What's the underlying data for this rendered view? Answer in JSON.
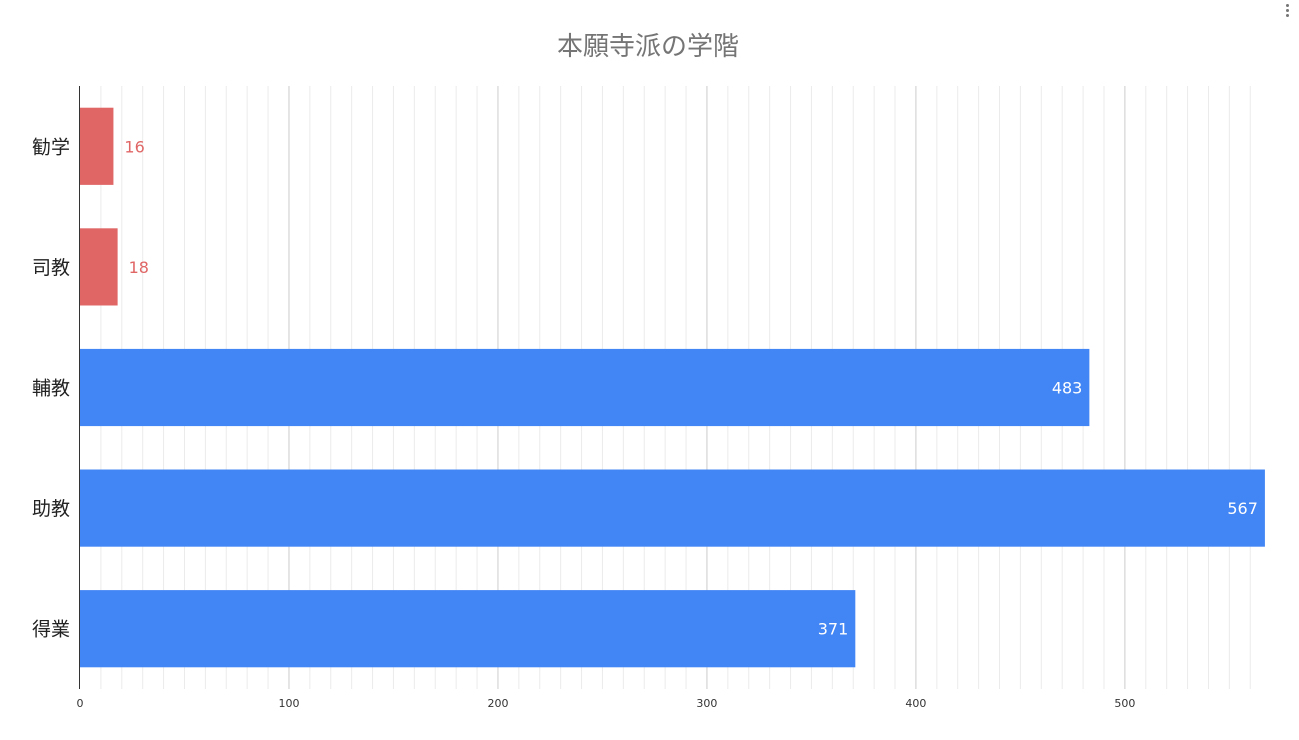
{
  "chart_data": {
    "type": "bar",
    "orientation": "horizontal",
    "title": "本願寺派の学階",
    "categories": [
      "勧学",
      "司教",
      "輔教",
      "助教",
      "得業"
    ],
    "values": [
      16,
      18,
      483,
      567,
      371
    ],
    "data_labels": [
      "16",
      "18",
      "483",
      "567",
      "371"
    ],
    "colors": [
      "#e06666",
      "#e06666",
      "#4285f4",
      "#4285f4",
      "#4285f4"
    ],
    "label_colors": [
      "#e06666",
      "#e06666",
      "#ffffff",
      "#ffffff",
      "#ffffff"
    ],
    "xlim": [
      0,
      568
    ],
    "xticks": [
      0,
      100,
      200,
      300,
      400,
      500
    ],
    "xtick_labels": [
      "0",
      "100",
      "200",
      "300",
      "400",
      "500"
    ],
    "minor_step": 10,
    "xlabel": "",
    "ylabel": "",
    "grid": true,
    "legend": "none"
  },
  "menu": {
    "icon": "more-vert-icon"
  }
}
